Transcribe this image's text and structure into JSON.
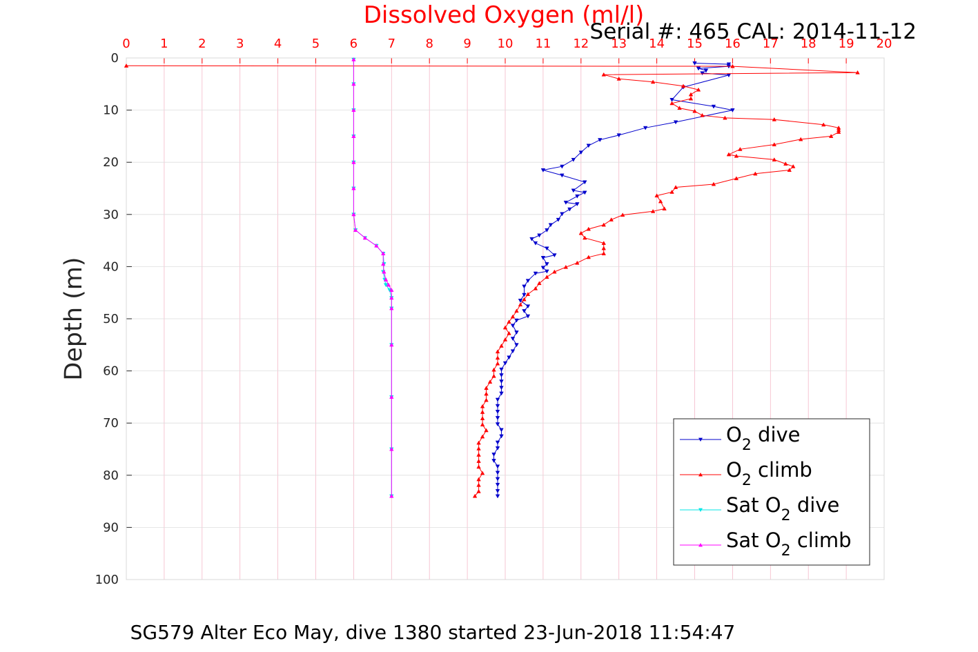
{
  "chart_data": {
    "type": "line",
    "title": "Dissolved Oxygen (ml/l)",
    "subtitle": "Serial #: 465  CAL: 2014-11-12",
    "caption": "SG579 Alter Eco May, dive 1380 started 23-Jun-2018 11:54:47",
    "xlabel": "",
    "ylabel": "Depth (m)",
    "xlim": [
      0,
      20
    ],
    "ylim": [
      0,
      100
    ],
    "y_reversed": true,
    "x_axis_position": "top",
    "xticks": [
      "0",
      "1",
      "2",
      "3",
      "4",
      "5",
      "6",
      "7",
      "8",
      "9",
      "10",
      "11",
      "12",
      "13",
      "14",
      "15",
      "16",
      "17",
      "18",
      "19",
      "20"
    ],
    "yticks": [
      "0",
      "10",
      "20",
      "30",
      "40",
      "50",
      "60",
      "70",
      "80",
      "90",
      "100"
    ],
    "grid": true,
    "legend_position": "bottom-right",
    "legend_entries": [
      {
        "text": "O",
        "sub": "2",
        "suffix": " dive"
      },
      {
        "text": "O",
        "sub": "2",
        "suffix": " climb"
      },
      {
        "text": "Sat O",
        "sub": "2",
        "suffix": " dive"
      },
      {
        "text": "Sat O",
        "sub": "2",
        "suffix": " climb"
      }
    ],
    "series": [
      {
        "color": "#0000cc",
        "marker": "triangle-down",
        "points": [
          [
            15.0,
            1.0
          ],
          [
            15.9,
            1.2
          ],
          [
            15.9,
            1.6
          ],
          [
            15.1,
            2.0
          ],
          [
            15.3,
            2.4
          ],
          [
            15.2,
            2.9
          ],
          [
            15.9,
            3.3
          ],
          [
            14.7,
            5.6
          ],
          [
            14.4,
            8.0
          ],
          [
            15.5,
            9.3
          ],
          [
            16.0,
            10.0
          ],
          [
            14.5,
            12.3
          ],
          [
            13.7,
            13.4
          ],
          [
            13.0,
            14.8
          ],
          [
            12.5,
            15.7
          ],
          [
            12.2,
            16.8
          ],
          [
            12.0,
            18.1
          ],
          [
            11.8,
            19.5
          ],
          [
            11.5,
            20.8
          ],
          [
            11.0,
            21.5
          ],
          [
            11.5,
            22.5
          ],
          [
            12.1,
            23.8
          ],
          [
            11.8,
            25.4
          ],
          [
            12.1,
            25.8
          ],
          [
            11.9,
            26.5
          ],
          [
            11.6,
            27.7
          ],
          [
            11.9,
            28.0
          ],
          [
            11.7,
            29.0
          ],
          [
            11.5,
            29.9
          ],
          [
            11.4,
            31.0
          ],
          [
            11.2,
            32.0
          ],
          [
            11.1,
            33.0
          ],
          [
            10.9,
            34.0
          ],
          [
            10.7,
            34.7
          ],
          [
            10.8,
            35.5
          ],
          [
            11.1,
            36.5
          ],
          [
            11.3,
            37.8
          ],
          [
            11.0,
            38.3
          ],
          [
            11.1,
            39.5
          ],
          [
            11.0,
            40.2
          ],
          [
            11.1,
            40.9
          ],
          [
            10.8,
            41.3
          ],
          [
            10.6,
            42.7
          ],
          [
            10.5,
            43.8
          ],
          [
            10.5,
            45.4
          ],
          [
            10.4,
            46.5
          ],
          [
            10.6,
            47.6
          ],
          [
            10.5,
            48.5
          ],
          [
            10.6,
            49.5
          ],
          [
            10.3,
            50.3
          ],
          [
            10.2,
            51.3
          ],
          [
            10.3,
            52.6
          ],
          [
            10.2,
            53.8
          ],
          [
            10.3,
            55.0
          ],
          [
            10.2,
            56.2
          ],
          [
            10.1,
            57.4
          ],
          [
            10.0,
            58.5
          ],
          [
            9.9,
            59.7
          ],
          [
            9.9,
            60.8
          ],
          [
            9.9,
            62.0
          ],
          [
            9.9,
            63.2
          ],
          [
            9.9,
            64.3
          ],
          [
            9.8,
            65.5
          ],
          [
            9.8,
            66.7
          ],
          [
            9.8,
            67.8
          ],
          [
            9.8,
            69.0
          ],
          [
            9.8,
            70.2
          ],
          [
            9.9,
            71.3
          ],
          [
            9.9,
            72.5
          ],
          [
            9.8,
            73.7
          ],
          [
            9.8,
            74.8
          ],
          [
            9.7,
            76.0
          ],
          [
            9.7,
            77.2
          ],
          [
            9.8,
            78.3
          ],
          [
            9.8,
            79.5
          ],
          [
            9.8,
            80.7
          ],
          [
            9.8,
            81.8
          ],
          [
            9.8,
            83.0
          ],
          [
            9.8,
            84.0
          ]
        ]
      },
      {
        "color": "#ff0000",
        "marker": "triangle-up",
        "points": [
          [
            0.0,
            1.5
          ],
          [
            16.0,
            1.6
          ],
          [
            19.3,
            2.8
          ],
          [
            12.6,
            3.2
          ],
          [
            13.0,
            4.0
          ],
          [
            13.9,
            4.6
          ],
          [
            14.7,
            5.4
          ],
          [
            15.1,
            6.1
          ],
          [
            14.9,
            7.0
          ],
          [
            14.9,
            7.8
          ],
          [
            14.4,
            8.7
          ],
          [
            14.6,
            9.6
          ],
          [
            15.0,
            10.2
          ],
          [
            15.2,
            11.0
          ],
          [
            15.8,
            11.5
          ],
          [
            17.1,
            11.8
          ],
          [
            18.4,
            12.8
          ],
          [
            18.8,
            13.4
          ],
          [
            18.8,
            13.8
          ],
          [
            18.8,
            14.2
          ],
          [
            18.6,
            15.0
          ],
          [
            17.8,
            15.6
          ],
          [
            17.1,
            16.6
          ],
          [
            16.2,
            17.5
          ],
          [
            15.9,
            18.5
          ],
          [
            16.1,
            18.8
          ],
          [
            17.1,
            19.5
          ],
          [
            17.4,
            20.3
          ],
          [
            17.6,
            20.8
          ],
          [
            17.5,
            21.5
          ],
          [
            16.6,
            22.2
          ],
          [
            16.1,
            23.1
          ],
          [
            15.5,
            24.2
          ],
          [
            14.5,
            24.8
          ],
          [
            14.4,
            25.7
          ],
          [
            14.0,
            26.4
          ],
          [
            14.1,
            27.5
          ],
          [
            14.2,
            28.9
          ],
          [
            13.9,
            29.4
          ],
          [
            13.1,
            30.1
          ],
          [
            12.8,
            31.0
          ],
          [
            12.6,
            32.0
          ],
          [
            12.2,
            32.8
          ],
          [
            12.0,
            33.6
          ],
          [
            12.1,
            34.5
          ],
          [
            12.6,
            35.5
          ],
          [
            12.6,
            36.5
          ],
          [
            12.6,
            37.5
          ],
          [
            12.2,
            38.2
          ],
          [
            11.9,
            39.3
          ],
          [
            11.6,
            40.1
          ],
          [
            11.3,
            41.0
          ],
          [
            11.1,
            42.0
          ],
          [
            10.9,
            43.2
          ],
          [
            10.8,
            44.2
          ],
          [
            10.6,
            45.3
          ],
          [
            10.5,
            46.3
          ],
          [
            10.4,
            47.3
          ],
          [
            10.3,
            48.5
          ],
          [
            10.2,
            49.6
          ],
          [
            10.1,
            50.6
          ],
          [
            10.0,
            51.7
          ],
          [
            10.1,
            52.8
          ],
          [
            10.0,
            54.0
          ],
          [
            9.9,
            55.2
          ],
          [
            9.8,
            56.3
          ],
          [
            9.8,
            57.5
          ],
          [
            9.8,
            58.6
          ],
          [
            9.7,
            59.8
          ],
          [
            9.7,
            61.0
          ],
          [
            9.6,
            62.1
          ],
          [
            9.5,
            63.3
          ],
          [
            9.5,
            64.4
          ],
          [
            9.5,
            65.6
          ],
          [
            9.4,
            66.8
          ],
          [
            9.4,
            67.9
          ],
          [
            9.4,
            69.1
          ],
          [
            9.4,
            70.3
          ],
          [
            9.5,
            71.4
          ],
          [
            9.4,
            72.6
          ],
          [
            9.3,
            73.8
          ],
          [
            9.3,
            74.9
          ],
          [
            9.3,
            76.1
          ],
          [
            9.3,
            77.3
          ],
          [
            9.3,
            78.4
          ],
          [
            9.4,
            79.6
          ],
          [
            9.3,
            80.8
          ],
          [
            9.3,
            81.9
          ],
          [
            9.3,
            83.1
          ],
          [
            9.2,
            84.0
          ]
        ]
      },
      {
        "color": "#00e6e6",
        "marker": "triangle-down",
        "points": [
          [
            6.0,
            0.3
          ],
          [
            6.0,
            5
          ],
          [
            6.0,
            10
          ],
          [
            6.0,
            15
          ],
          [
            6.0,
            20
          ],
          [
            6.0,
            25
          ],
          [
            6.0,
            30
          ],
          [
            6.05,
            33
          ],
          [
            6.3,
            34.5
          ],
          [
            6.6,
            36
          ],
          [
            6.78,
            37.5
          ],
          [
            6.8,
            39.5
          ],
          [
            6.78,
            41
          ],
          [
            6.82,
            42.5
          ],
          [
            6.85,
            43.5
          ],
          [
            6.95,
            44.5
          ],
          [
            7.0,
            46
          ],
          [
            7.0,
            48
          ],
          [
            7.0,
            55
          ],
          [
            7.0,
            65
          ],
          [
            7.0,
            75
          ],
          [
            7.0,
            84
          ]
        ]
      },
      {
        "color": "#ff00ff",
        "marker": "triangle-up",
        "points": [
          [
            6.0,
            0.3
          ],
          [
            6.0,
            5
          ],
          [
            6.0,
            10
          ],
          [
            6.0,
            15
          ],
          [
            6.0,
            20
          ],
          [
            6.0,
            25
          ],
          [
            6.0,
            30
          ],
          [
            6.05,
            33
          ],
          [
            6.3,
            34.5
          ],
          [
            6.6,
            36
          ],
          [
            6.78,
            37.5
          ],
          [
            6.78,
            39.5
          ],
          [
            6.8,
            41
          ],
          [
            6.85,
            42.5
          ],
          [
            6.92,
            43.5
          ],
          [
            7.0,
            44.5
          ],
          [
            7.0,
            46
          ],
          [
            7.0,
            48
          ],
          [
            7.0,
            55
          ],
          [
            7.0,
            65
          ],
          [
            7.0,
            75
          ],
          [
            7.0,
            84
          ]
        ]
      }
    ]
  }
}
